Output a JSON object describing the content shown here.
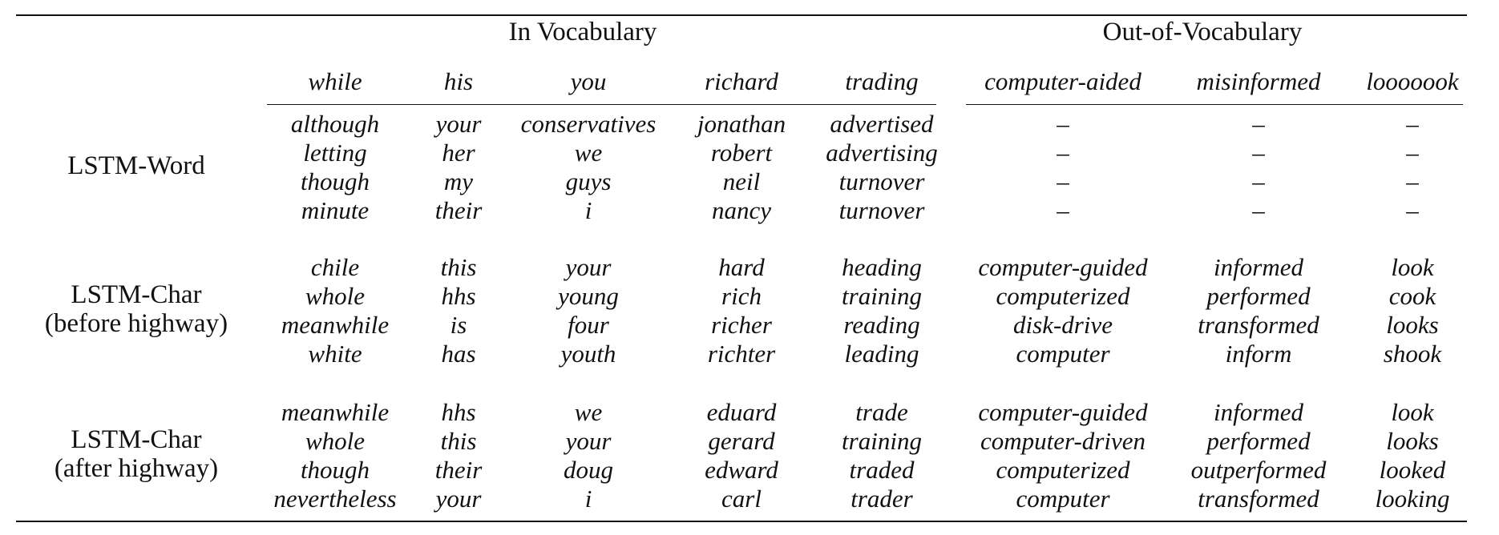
{
  "header": {
    "in_vocab_label": "In Vocabulary",
    "oov_label": "Out-of-Vocabulary"
  },
  "columns": [
    "while",
    "his",
    "you",
    "richard",
    "trading",
    "computer-aided",
    "misinformed",
    "looooook"
  ],
  "rows": [
    {
      "label_lines": [
        "LSTM-Word"
      ],
      "neighbors": [
        [
          "although",
          "your",
          "conservatives",
          "jonathan",
          "advertised",
          "–",
          "–",
          "–"
        ],
        [
          "letting",
          "her",
          "we",
          "robert",
          "advertising",
          "–",
          "–",
          "–"
        ],
        [
          "though",
          "my",
          "guys",
          "neil",
          "turnover",
          "–",
          "–",
          "–"
        ],
        [
          "minute",
          "their",
          "i",
          "nancy",
          "turnover",
          "–",
          "–",
          "–"
        ]
      ]
    },
    {
      "label_lines": [
        "LSTM-Char",
        "(before highway)"
      ],
      "neighbors": [
        [
          "chile",
          "this",
          "your",
          "hard",
          "heading",
          "computer-guided",
          "informed",
          "look"
        ],
        [
          "whole",
          "hhs",
          "young",
          "rich",
          "training",
          "computerized",
          "performed",
          "cook"
        ],
        [
          "meanwhile",
          "is",
          "four",
          "richer",
          "reading",
          "disk-drive",
          "transformed",
          "looks"
        ],
        [
          "white",
          "has",
          "youth",
          "richter",
          "leading",
          "computer",
          "inform",
          "shook"
        ]
      ]
    },
    {
      "label_lines": [
        "LSTM-Char",
        "(after highway)"
      ],
      "neighbors": [
        [
          "meanwhile",
          "hhs",
          "we",
          "eduard",
          "trade",
          "computer-guided",
          "informed",
          "look"
        ],
        [
          "whole",
          "this",
          "your",
          "gerard",
          "training",
          "computer-driven",
          "performed",
          "looks"
        ],
        [
          "though",
          "their",
          "doug",
          "edward",
          "traded",
          "computerized",
          "outperformed",
          "looked"
        ],
        [
          "nevertheless",
          "your",
          "i",
          "carl",
          "trader",
          "computer",
          "transformed",
          "looking"
        ]
      ]
    }
  ]
}
